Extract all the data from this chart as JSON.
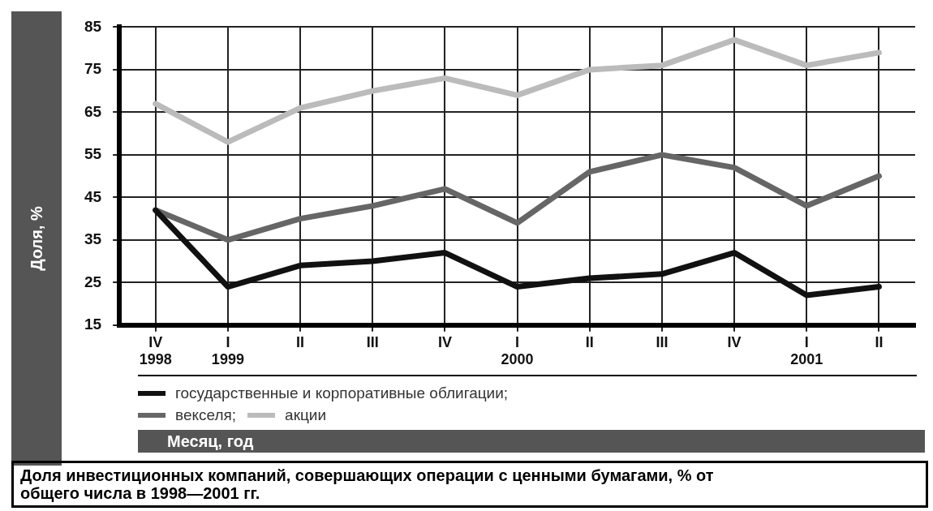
{
  "chart_data": {
    "type": "line",
    "title": "Доля инвестиционных компаний, совершающих операции с ценными бумагами, % от общего числа в 1998—2001 гг.",
    "xlabel": "Месяц, год",
    "ylabel": "Доля, %",
    "categories": [
      "IV 1998",
      "I 1999",
      "II",
      "III",
      "IV",
      "I 2000",
      "II",
      "III",
      "IV",
      "I 2001",
      "II"
    ],
    "series": [
      {
        "name": "государственные и корпоративные облигации;",
        "color": "#111111",
        "values": [
          42,
          24,
          29,
          30,
          32,
          24,
          26,
          27,
          32,
          22,
          24
        ]
      },
      {
        "name": "векселя;",
        "color": "#666666",
        "values": [
          42,
          35,
          40,
          43,
          47,
          39,
          51,
          55,
          52,
          43,
          50
        ]
      },
      {
        "name": "акции",
        "color": "#bbbbbb",
        "values": [
          67,
          58,
          66,
          70,
          73,
          69,
          75,
          76,
          82,
          76,
          79
        ]
      }
    ],
    "ylim": [
      15,
      85
    ],
    "yticks": [
      15,
      25,
      35,
      45,
      55,
      65,
      75,
      85
    ],
    "grid": true,
    "legend": "bottom left",
    "marker": "none",
    "line_style": "solid"
  }
}
